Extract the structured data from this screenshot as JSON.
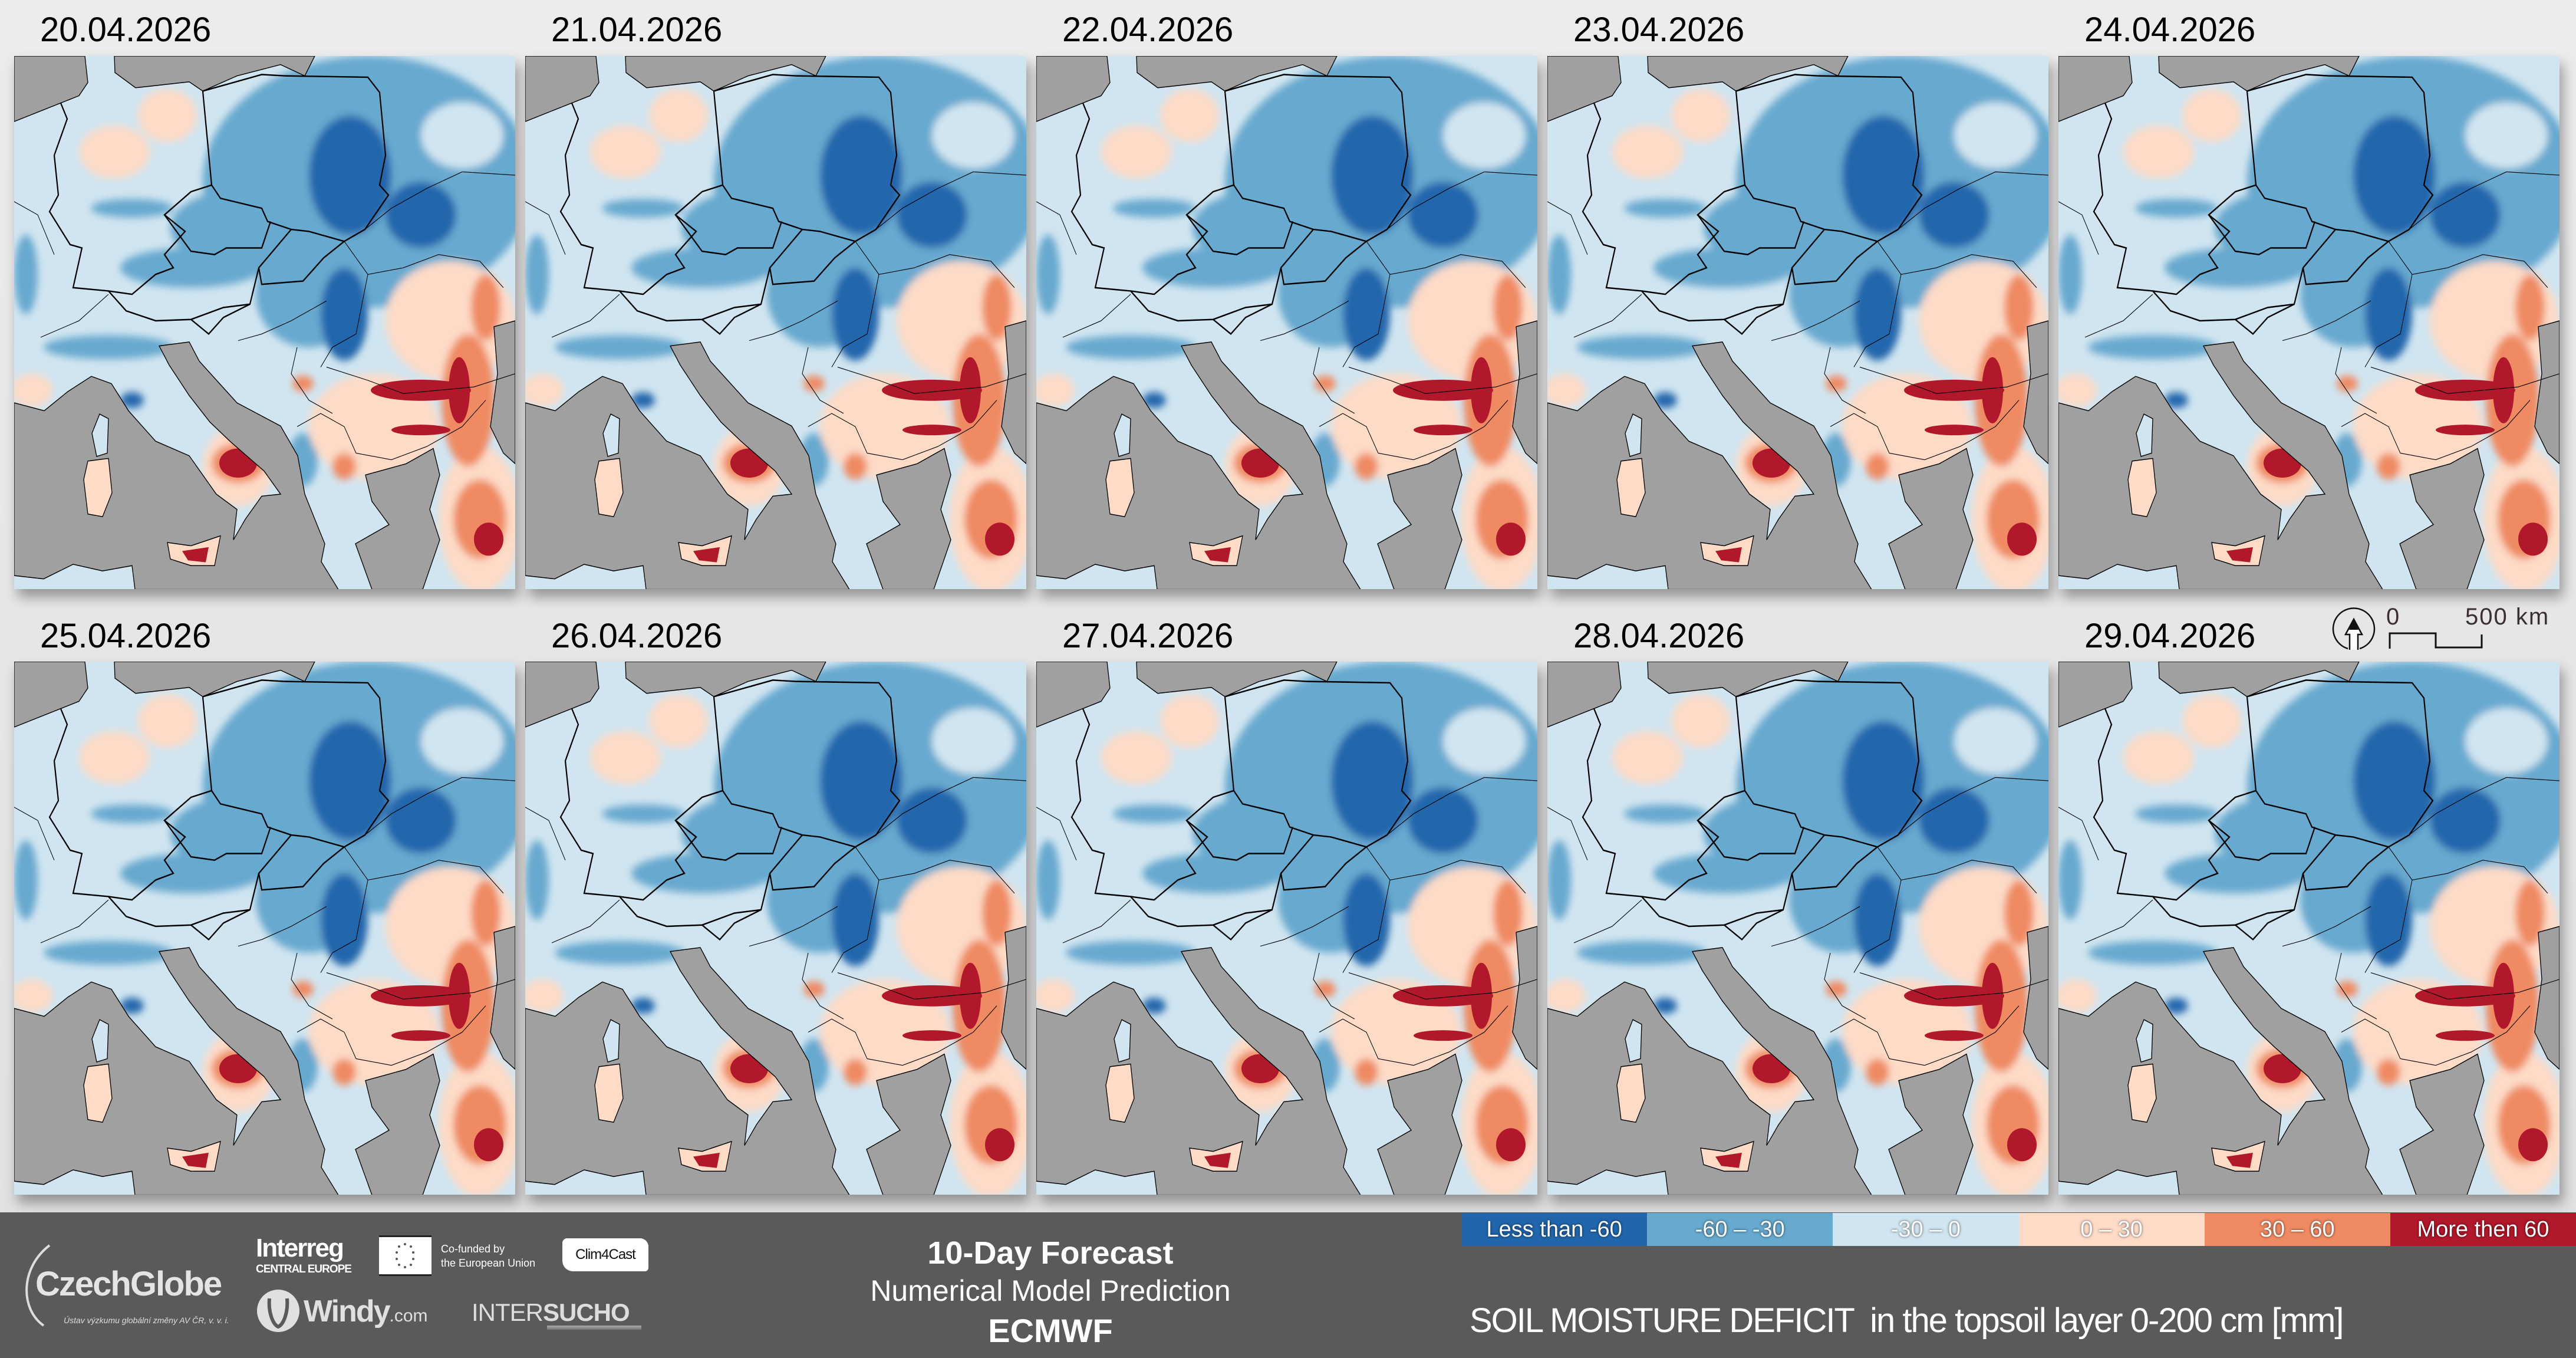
{
  "panels": [
    {
      "date": "20.04.2026"
    },
    {
      "date": "21.04.2026"
    },
    {
      "date": "22.04.2026"
    },
    {
      "date": "23.04.2026"
    },
    {
      "date": "24.04.2026"
    },
    {
      "date": "25.04.2026"
    },
    {
      "date": "26.04.2026"
    },
    {
      "date": "27.04.2026"
    },
    {
      "date": "28.04.2026"
    },
    {
      "date": "29.04.2026"
    }
  ],
  "scale_bar": {
    "start": "0",
    "end": "500 km",
    "north_icon": "north-arrow-icon"
  },
  "logos": {
    "czechglobe": "CzechGlobe",
    "czechglobe_sub": "Ústav výzkumu globální změny AV ČR, v. v. i.",
    "interreg": "Interreg",
    "interreg_sub": "CENTRAL EUROPE",
    "eu_line1": "Co-funded by",
    "eu_line2": "the European Union",
    "clim4cast": "Clim4Cast",
    "windy": "Windy",
    "windy_suffix": ".com",
    "intersucho_a": "INTER",
    "intersucho_b": "SUCHO"
  },
  "forecast": {
    "title": "10-Day Forecast",
    "subtitle": "Numerical Model Prediction",
    "model": "ECMWF"
  },
  "legend": {
    "items": [
      {
        "label": "Less than -60",
        "color": "#2166ac"
      },
      {
        "label": "-60 – -30",
        "color": "#67a9cf"
      },
      {
        "label": "-30 – 0",
        "color": "#d1e5f0"
      },
      {
        "label": "0 – 30",
        "color": "#fddbc7"
      },
      {
        "label": "30 – 60",
        "color": "#ef8a62"
      },
      {
        "label": "More then 60",
        "color": "#b2182b"
      }
    ],
    "title": "SOIL MOISTURE DEFICIT  in the topsoil layer 0-200 cm [mm]"
  },
  "colors": {
    "sea": "#a0a0a0",
    "footer": "#5a5a5a"
  }
}
